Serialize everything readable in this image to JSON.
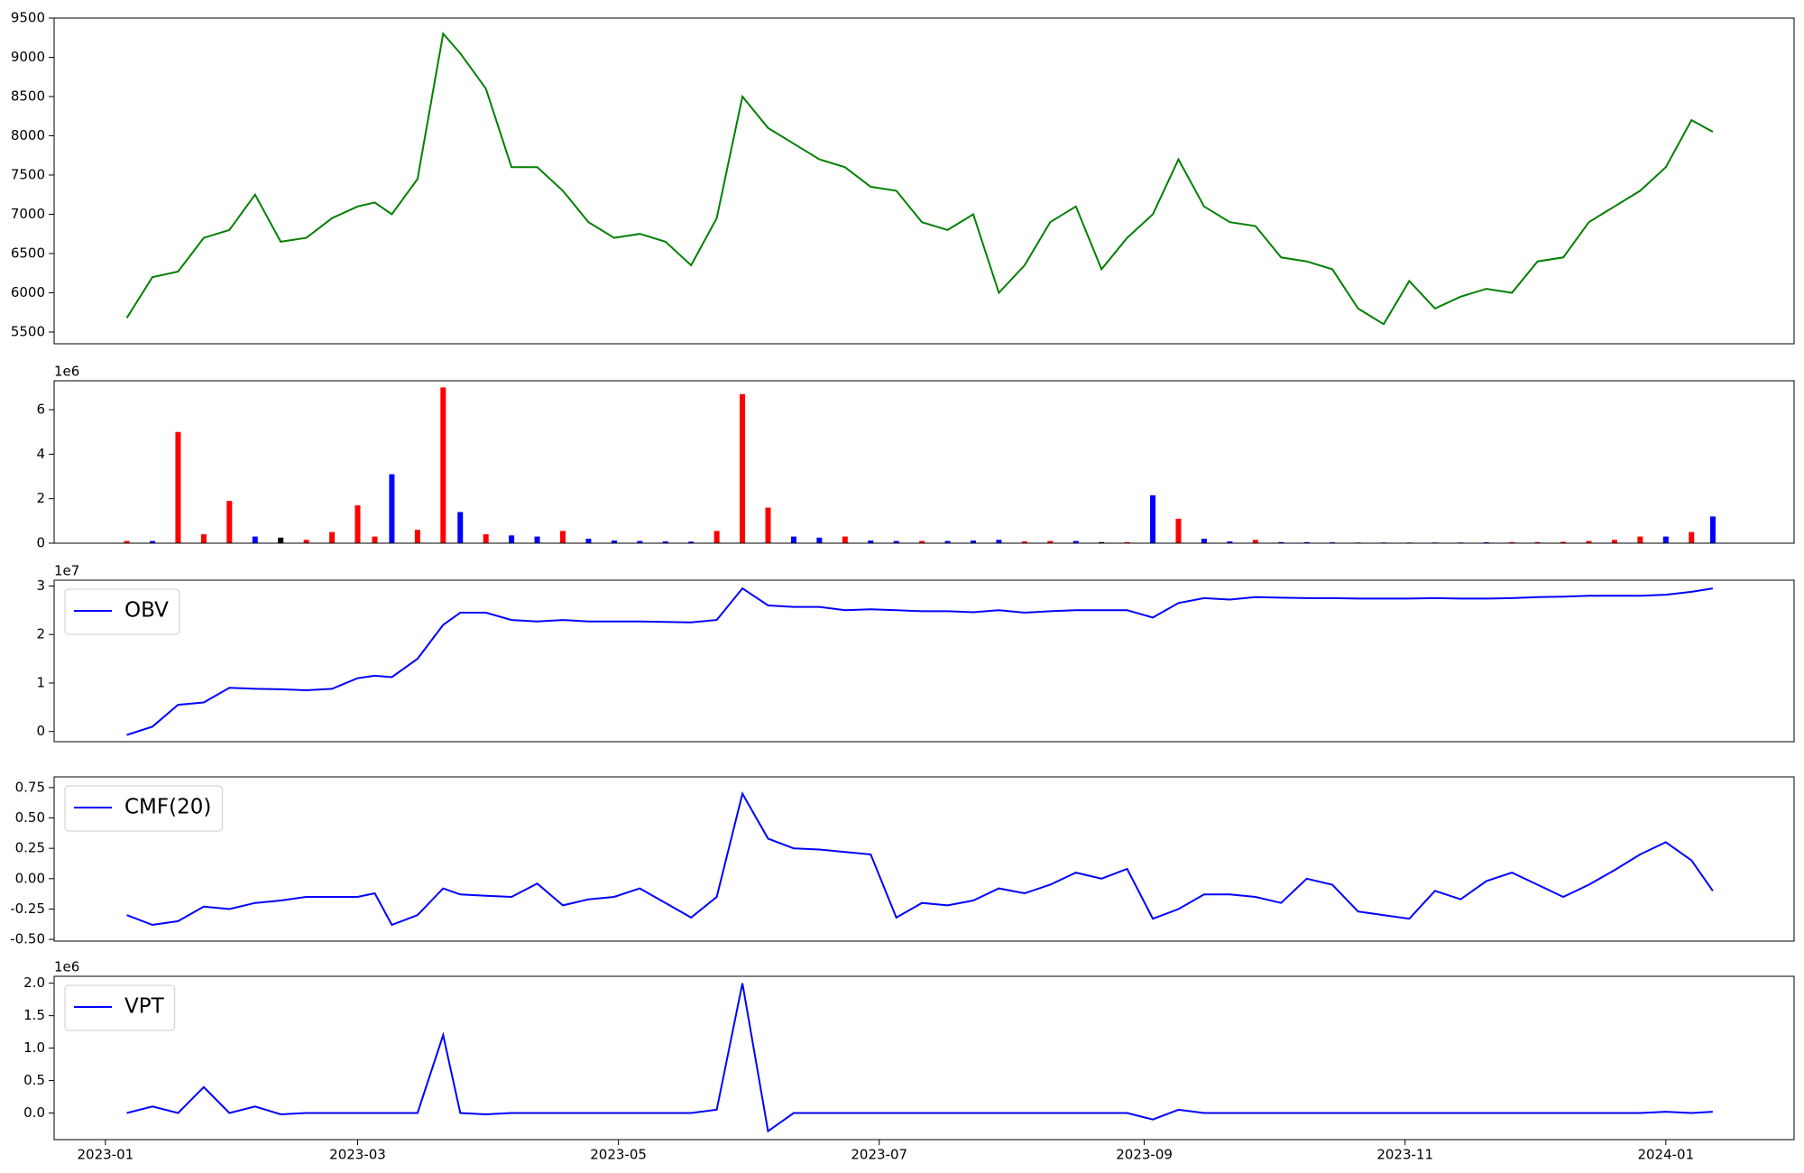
{
  "chart_data": [
    {
      "type": "line",
      "xlim": [
        -12,
        395
      ],
      "ylim": [
        5350,
        9500
      ],
      "yticks": [
        5500,
        6000,
        6500,
        7000,
        7500,
        8000,
        8500,
        9000,
        9500
      ],
      "x": [
        5,
        11,
        17,
        23,
        29,
        35,
        41,
        47,
        53,
        59,
        63,
        67,
        73,
        79,
        83,
        89,
        95,
        101,
        107,
        113,
        119,
        125,
        131,
        137,
        143,
        149,
        155,
        161,
        167,
        173,
        179,
        185,
        191,
        197,
        203,
        209,
        215,
        221,
        227,
        233,
        239,
        245,
        251,
        257,
        263,
        269,
        275,
        281,
        287,
        293,
        299,
        305,
        311,
        317,
        323,
        329,
        335,
        341,
        347,
        353,
        359,
        365,
        371,
        376
      ],
      "series": [
        {
          "color": "green",
          "values": [
            5680,
            6200,
            6270,
            6700,
            6800,
            7250,
            6650,
            6700,
            6950,
            7100,
            7150,
            7000,
            7450,
            9300,
            9050,
            8600,
            7600,
            7600,
            7300,
            6900,
            6700,
            6750,
            6650,
            6350,
            6950,
            8500,
            8100,
            7900,
            7700,
            7600,
            7350,
            7300,
            6900,
            6800,
            7000,
            6000,
            6350,
            6900,
            7100,
            6300,
            6700,
            7000,
            7700,
            7100,
            6900,
            6850,
            6450,
            6400,
            6300,
            5800,
            5600,
            6150,
            5800,
            5950,
            6050,
            6000,
            6400,
            6450,
            6900,
            7100,
            7300,
            7600,
            8200,
            8050
          ]
        }
      ]
    },
    {
      "type": "bar",
      "offset_label": "1e6",
      "xlim": [
        -12,
        395
      ],
      "ylim": [
        0,
        7.3
      ],
      "yticks": [
        0,
        2,
        4,
        6
      ],
      "x": [
        5,
        11,
        17,
        23,
        29,
        35,
        41,
        47,
        53,
        59,
        63,
        67,
        73,
        79,
        83,
        89,
        95,
        101,
        107,
        113,
        119,
        125,
        131,
        137,
        143,
        149,
        155,
        161,
        167,
        173,
        179,
        185,
        191,
        197,
        203,
        209,
        215,
        221,
        227,
        233,
        239,
        245,
        251,
        257,
        263,
        269,
        275,
        281,
        287,
        293,
        299,
        305,
        311,
        317,
        323,
        329,
        335,
        341,
        347,
        353,
        359,
        365,
        371,
        376
      ],
      "values": [
        0.1,
        0.1,
        5.0,
        0.4,
        1.9,
        0.3,
        0.25,
        0.15,
        0.5,
        1.7,
        0.3,
        3.1,
        0.6,
        7.0,
        1.4,
        0.4,
        0.35,
        0.3,
        0.55,
        0.2,
        0.12,
        0.1,
        0.08,
        0.07,
        0.55,
        6.7,
        1.6,
        0.3,
        0.25,
        0.3,
        0.12,
        0.1,
        0.1,
        0.1,
        0.12,
        0.15,
        0.08,
        0.1,
        0.1,
        0.05,
        0.05,
        2.15,
        1.1,
        0.2,
        0.08,
        0.15,
        0.05,
        0.05,
        0.04,
        0.03,
        0.03,
        0.03,
        0.03,
        0.03,
        0.04,
        0.05,
        0.05,
        0.06,
        0.1,
        0.15,
        0.3,
        0.3,
        0.5,
        1.2
      ],
      "colors": [
        "red",
        "blue",
        "red",
        "red",
        "red",
        "blue",
        "black",
        "red",
        "red",
        "red",
        "red",
        "blue",
        "red",
        "red",
        "blue",
        "red",
        "blue",
        "blue",
        "red",
        "blue",
        "blue",
        "blue",
        "blue",
        "blue",
        "red",
        "red",
        "red",
        "blue",
        "blue",
        "red",
        "blue",
        "blue",
        "red",
        "blue",
        "blue",
        "blue",
        "red",
        "red",
        "blue",
        "black",
        "red",
        "blue",
        "red",
        "blue",
        "blue",
        "red",
        "blue",
        "blue",
        "blue",
        "blue",
        "blue",
        "blue",
        "blue",
        "blue",
        "blue",
        "red",
        "red",
        "red",
        "red",
        "red",
        "red",
        "blue",
        "red",
        "blue"
      ]
    },
    {
      "type": "line",
      "offset_label": "1e7",
      "legend": "upper left",
      "xlim": [
        -12,
        395
      ],
      "ylim": [
        -0.21,
        3.12
      ],
      "yticks": [
        0,
        1,
        2,
        3
      ],
      "x": [
        5,
        11,
        17,
        23,
        29,
        35,
        41,
        47,
        53,
        59,
        63,
        67,
        73,
        79,
        83,
        89,
        95,
        101,
        107,
        113,
        119,
        125,
        131,
        137,
        143,
        149,
        155,
        161,
        167,
        173,
        179,
        185,
        191,
        197,
        203,
        209,
        215,
        221,
        227,
        233,
        239,
        245,
        251,
        257,
        263,
        269,
        275,
        281,
        287,
        293,
        299,
        305,
        311,
        317,
        323,
        329,
        335,
        341,
        347,
        353,
        359,
        365,
        371,
        376
      ],
      "series": [
        {
          "name": "OBV",
          "color": "blue",
          "values": [
            -0.07,
            0.1,
            0.55,
            0.6,
            0.9,
            0.88,
            0.87,
            0.85,
            0.88,
            1.1,
            1.15,
            1.12,
            1.5,
            2.2,
            2.45,
            2.45,
            2.3,
            2.27,
            2.3,
            2.27,
            2.27,
            2.27,
            2.26,
            2.25,
            2.3,
            2.95,
            2.6,
            2.57,
            2.57,
            2.5,
            2.52,
            2.5,
            2.48,
            2.48,
            2.46,
            2.5,
            2.45,
            2.48,
            2.5,
            2.5,
            2.5,
            2.35,
            2.65,
            2.75,
            2.72,
            2.77,
            2.76,
            2.75,
            2.75,
            2.74,
            2.74,
            2.74,
            2.75,
            2.74,
            2.74,
            2.75,
            2.77,
            2.78,
            2.8,
            2.8,
            2.8,
            2.82,
            2.88,
            2.95
          ]
        }
      ]
    },
    {
      "type": "line",
      "legend": "upper left",
      "xlim": [
        -12,
        395
      ],
      "ylim": [
        -0.514,
        0.838
      ],
      "yticks": [
        {
          "value": -0.5,
          "label": "-0.50"
        },
        {
          "value": -0.25,
          "label": "-0.25"
        },
        {
          "value": 0,
          "label": "0.00"
        },
        {
          "value": 0.25,
          "label": "0.25"
        },
        {
          "value": 0.5,
          "label": "0.50"
        },
        {
          "value": 0.75,
          "label": "0.75"
        }
      ],
      "x": [
        5,
        11,
        17,
        23,
        29,
        35,
        41,
        47,
        53,
        59,
        63,
        67,
        73,
        79,
        83,
        89,
        95,
        101,
        107,
        113,
        119,
        125,
        131,
        137,
        143,
        149,
        155,
        161,
        167,
        173,
        179,
        185,
        191,
        197,
        203,
        209,
        215,
        221,
        227,
        233,
        239,
        245,
        251,
        257,
        263,
        269,
        275,
        281,
        287,
        293,
        299,
        305,
        311,
        317,
        323,
        329,
        335,
        341,
        347,
        353,
        359,
        365,
        371,
        376
      ],
      "series": [
        {
          "name": "CMF(20)",
          "color": "blue",
          "values": [
            -0.3,
            -0.38,
            -0.35,
            -0.23,
            -0.25,
            -0.2,
            -0.18,
            -0.15,
            -0.15,
            -0.15,
            -0.12,
            -0.38,
            -0.3,
            -0.08,
            -0.13,
            -0.14,
            -0.15,
            -0.04,
            -0.22,
            -0.17,
            -0.15,
            -0.08,
            -0.2,
            -0.32,
            -0.15,
            0.7,
            0.33,
            0.25,
            0.24,
            0.22,
            0.2,
            -0.32,
            -0.2,
            -0.22,
            -0.18,
            -0.08,
            -0.12,
            -0.05,
            0.05,
            0,
            0.08,
            -0.33,
            -0.25,
            -0.13,
            -0.13,
            -0.15,
            -0.2,
            0,
            -0.05,
            -0.27,
            -0.3,
            -0.33,
            -0.1,
            -0.17,
            -0.02,
            0.05,
            -0.05,
            -0.15,
            -0.05,
            0.07,
            0.2,
            0.3,
            0.15,
            -0.1
          ]
        }
      ]
    },
    {
      "type": "line",
      "offset_label": "1e6",
      "legend": "upper left",
      "xlim": [
        -12,
        395
      ],
      "ylim": [
        -0.41,
        2.107
      ],
      "yticks": [
        {
          "value": 0,
          "label": "0.0"
        },
        {
          "value": 0.5,
          "label": "0.5"
        },
        {
          "value": 1,
          "label": "1.0"
        },
        {
          "value": 1.5,
          "label": "1.5"
        },
        {
          "value": 2,
          "label": "2.0"
        }
      ],
      "xticks": [
        {
          "value": 0,
          "label": "2023-01"
        },
        {
          "value": 59,
          "label": "2023-03"
        },
        {
          "value": 120,
          "label": "2023-05"
        },
        {
          "value": 181,
          "label": "2023-07"
        },
        {
          "value": 243,
          "label": "2023-09"
        },
        {
          "value": 304,
          "label": "2023-11"
        },
        {
          "value": 365,
          "label": "2024-01"
        }
      ],
      "x": [
        5,
        11,
        17,
        23,
        29,
        35,
        41,
        47,
        53,
        59,
        63,
        67,
        73,
        79,
        83,
        89,
        95,
        101,
        107,
        113,
        119,
        125,
        131,
        137,
        143,
        149,
        155,
        161,
        167,
        173,
        179,
        185,
        191,
        197,
        203,
        209,
        215,
        221,
        227,
        233,
        239,
        245,
        251,
        257,
        263,
        269,
        275,
        281,
        287,
        293,
        299,
        305,
        311,
        317,
        323,
        329,
        335,
        341,
        347,
        353,
        359,
        365,
        371,
        376
      ],
      "series": [
        {
          "name": "VPT",
          "color": "blue",
          "values": [
            0,
            0.1,
            0,
            0.4,
            0,
            0.1,
            -0.02,
            0,
            0,
            0,
            0,
            0,
            0,
            1.2,
            0,
            -0.02,
            0,
            0,
            0,
            0,
            0,
            0,
            0,
            0,
            0.05,
            2.0,
            -0.28,
            0,
            0,
            0,
            0,
            0,
            0,
            0,
            0,
            0,
            0,
            0,
            0,
            0,
            0,
            -0.1,
            0.05,
            0,
            0,
            0,
            0,
            0,
            0,
            0,
            0,
            0,
            0,
            0,
            0,
            0,
            0,
            0,
            0,
            0,
            0,
            0.02,
            0,
            0.02
          ]
        }
      ]
    }
  ]
}
